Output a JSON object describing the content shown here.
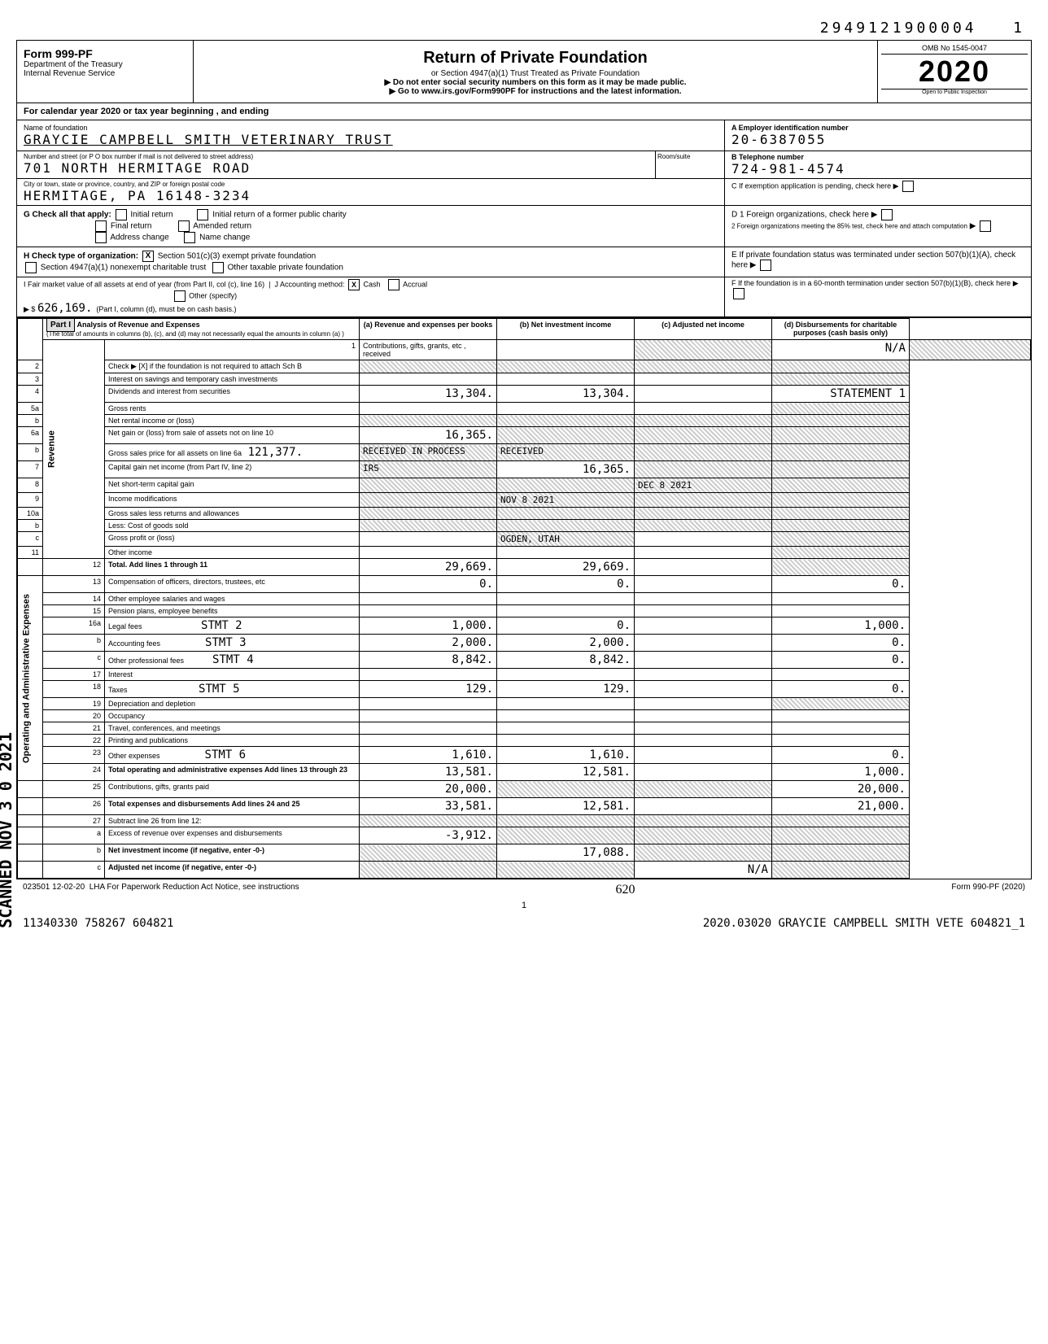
{
  "top_number": "2949121900004",
  "top_seq": "1",
  "header": {
    "form_no": "999-PF",
    "dept": "Department of the Treasury",
    "irs": "Internal Revenue Service",
    "title": "Return of Private Foundation",
    "subtitle1": "or Section 4947(a)(1) Trust Treated as Private Foundation",
    "subtitle2": "▶ Do not enter social security numbers on this form as it may be made public.",
    "subtitle3": "▶ Go to www.irs.gov/Form990PF for instructions and the latest information.",
    "omb": "OMB No  1545-0047",
    "year": "2020",
    "inspect": "Open to Public Inspection"
  },
  "cal_year": "For calendar year 2020 or tax year beginning                                                              , and ending",
  "foundation": {
    "name_label": "Name of foundation",
    "name": "GRAYCIE CAMPBELL SMITH VETERINARY TRUST",
    "ein_label": "A Employer identification number",
    "ein": "20-6387055",
    "addr_label": "Number and street (or P O  box number if mail is not delivered to street address)",
    "addr": "701 NORTH HERMITAGE ROAD",
    "room_label": "Room/suite",
    "phone_label": "B Telephone number",
    "phone": "724-981-4574",
    "city_label": "City or town, state or province, country, and ZIP or foreign postal code",
    "city": "HERMITAGE, PA  16148-3234",
    "c_label": "C If exemption application is pending, check here"
  },
  "section_g": {
    "label": "G  Check all that apply:",
    "initial_return": "Initial return",
    "final_return": "Final return",
    "address_change": "Address change",
    "initial_former": "Initial return of a former public charity",
    "amended": "Amended return",
    "name_change": "Name change"
  },
  "section_d": {
    "d1": "D 1  Foreign organizations, check here",
    "d2": "2  Foreign organizations meeting the 85% test, check here and attach computation"
  },
  "section_h": {
    "label": "H  Check type of organization:",
    "opt1": "Section 501(c)(3) exempt private foundation",
    "opt1_checked": "X",
    "opt2": "Section 4947(a)(1) nonexempt charitable trust",
    "opt3": "Other taxable private foundation"
  },
  "section_e": "E  If private foundation status was terminated under section 507(b)(1)(A), check here",
  "section_i": {
    "label": "I  Fair market value of all assets at end of year (from Part II, col  (c), line 16)",
    "value": "626,169.",
    "arrow": "▶ $"
  },
  "section_j": {
    "label": "J  Accounting method:",
    "cash": "Cash",
    "cash_checked": "X",
    "accrual": "Accrual",
    "other": "Other (specify)",
    "note": "(Part I, column (d), must be on cash basis.)"
  },
  "section_f": "F  If the foundation is in a 60-month termination under section 507(b)(1)(B), check here",
  "part1": {
    "title": "Part I",
    "subtitle": "Analysis of Revenue and Expenses",
    "note": "(The total of amounts in columns (b), (c), and (d) may not necessarily equal the amounts in column (a) )",
    "col_a": "(a) Revenue and expenses per books",
    "col_b": "(b) Net investment income",
    "col_c": "(c) Adjusted net income",
    "col_d": "(d) Disbursements for charitable purposes (cash basis only)"
  },
  "revenue_label": "Revenue",
  "expenses_label": "Operating and Administrative Expenses",
  "scanned_label": "SCANNED NOV 3 0 2021",
  "lines": {
    "1": {
      "desc": "Contributions, gifts, grants, etc , received",
      "c": "N/A"
    },
    "2": {
      "desc": "Check ▶ [X] if the foundation is not required to attach Sch  B"
    },
    "3": {
      "desc": "Interest on savings and temporary cash investments"
    },
    "4": {
      "desc": "Dividends and interest from securities",
      "a": "13,304.",
      "b": "13,304.",
      "d": "STATEMENT 1"
    },
    "5a": {
      "desc": "Gross rents"
    },
    "5b": {
      "desc": "Net rental income or (loss)"
    },
    "6a": {
      "desc": "Net gain or (loss) from sale of assets not on line 10",
      "a": "16,365."
    },
    "6b": {
      "desc": "Gross sales price for all assets on line 6a",
      "val": "121,377."
    },
    "7": {
      "desc": "Capital gain net income (from Part IV, line 2)",
      "b": "16,365."
    },
    "8": {
      "desc": "Net short-term capital gain"
    },
    "9": {
      "desc": "Income modifications"
    },
    "10a": {
      "desc": "Gross sales less returns and allowances"
    },
    "10b": {
      "desc": "Less: Cost of goods sold"
    },
    "10c": {
      "desc": "Gross profit or (loss)"
    },
    "11": {
      "desc": "Other income"
    },
    "12": {
      "desc": "Total. Add lines 1 through 11",
      "a": "29,669.",
      "b": "29,669."
    },
    "13": {
      "desc": "Compensation of officers, directors, trustees, etc",
      "a": "0.",
      "b": "0.",
      "d": "0."
    },
    "14": {
      "desc": "Other employee salaries and wages"
    },
    "15": {
      "desc": "Pension plans, employee benefits"
    },
    "16a": {
      "desc": "Legal fees",
      "stmt": "STMT 2",
      "a": "1,000.",
      "b": "0.",
      "d": "1,000."
    },
    "16b": {
      "desc": "Accounting fees",
      "stmt": "STMT 3",
      "a": "2,000.",
      "b": "2,000.",
      "d": "0."
    },
    "16c": {
      "desc": "Other professional fees",
      "stmt": "STMT 4",
      "a": "8,842.",
      "b": "8,842.",
      "d": "0."
    },
    "17": {
      "desc": "Interest"
    },
    "18": {
      "desc": "Taxes",
      "stmt": "STMT 5",
      "a": "129.",
      "b": "129.",
      "d": "0."
    },
    "19": {
      "desc": "Depreciation and depletion"
    },
    "20": {
      "desc": "Occupancy"
    },
    "21": {
      "desc": "Travel, conferences, and meetings"
    },
    "22": {
      "desc": "Printing and publications"
    },
    "23": {
      "desc": "Other expenses",
      "stmt": "STMT 6",
      "a": "1,610.",
      "b": "1,610.",
      "d": "0."
    },
    "24": {
      "desc": "Total operating and administrative expenses  Add lines 13 through 23",
      "a": "13,581.",
      "b": "12,581.",
      "d": "1,000."
    },
    "25": {
      "desc": "Contributions, gifts, grants paid",
      "a": "20,000.",
      "d": "20,000."
    },
    "26": {
      "desc": "Total expenses and disbursements Add lines 24 and 25",
      "a": "33,581.",
      "b": "12,581.",
      "d": "21,000."
    },
    "27": {
      "desc": "Subtract line 26 from line 12:"
    },
    "27a": {
      "desc": "Excess of revenue over expenses and disbursements",
      "a": "-3,912."
    },
    "27b": {
      "desc": "Net investment income (if negative, enter -0-)",
      "b": "17,088."
    },
    "27c": {
      "desc": "Adjusted net income (if negative, enter -0-)",
      "c": "N/A"
    }
  },
  "stamps": {
    "received": "RECEIVED",
    "ogden": "OGDEN, UTAH",
    "irs": "IRS",
    "date1": "NOV 8 2021",
    "date2": "DEC 8 2021"
  },
  "footer": {
    "code": "023501 12-02-20",
    "lha": "LHA  For Paperwork Reduction Act Notice, see instructions",
    "form": "Form 990-PF (2020)",
    "page": "1",
    "handwritten": "620",
    "bottom_left": "11340330 758267 604821",
    "bottom_right": "2020.03020 GRAYCIE CAMPBELL SMITH VETE 604821_1"
  }
}
